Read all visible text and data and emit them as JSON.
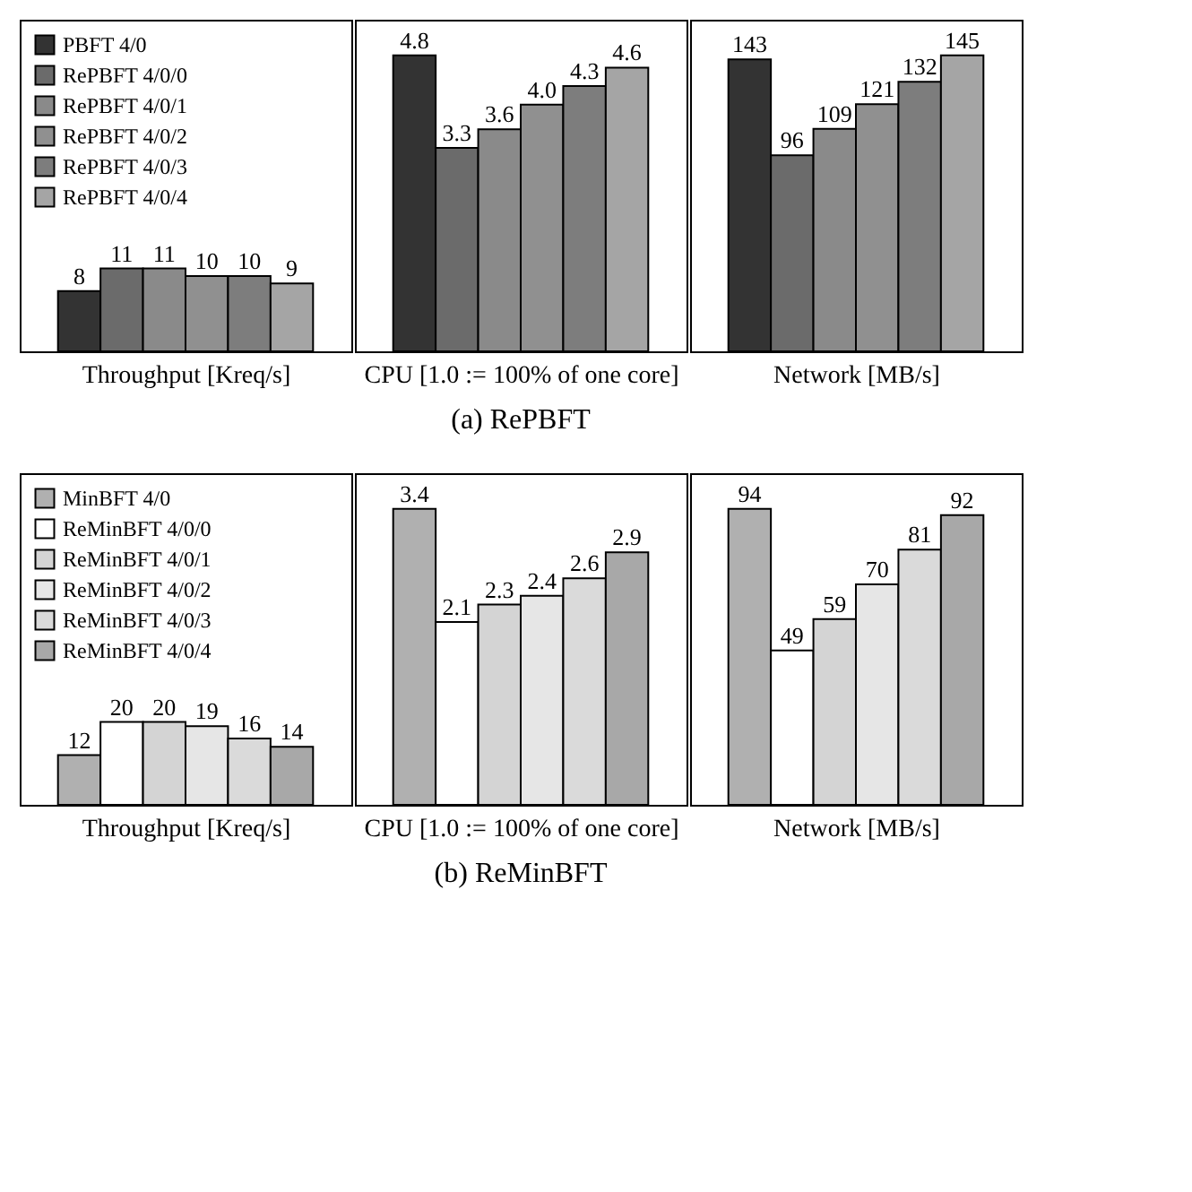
{
  "chart_data": [
    {
      "type": "bar",
      "xlabel": "Throughput [Kreq/s]",
      "categories": [
        null
      ],
      "data_labels": true,
      "legend": "top left",
      "series": [
        {
          "name": "PBFT 4/0",
          "color": "#333333",
          "values": [
            8
          ]
        },
        {
          "name": "RePBFT 4/0/0",
          "color": "#6b6b6b",
          "values": [
            11
          ]
        },
        {
          "name": "RePBFT 4/0/1",
          "color": "#8a8a8a",
          "values": [
            11
          ]
        },
        {
          "name": "RePBFT 4/0/2",
          "color": "#909090",
          "values": [
            10
          ]
        },
        {
          "name": "RePBFT 4/0/3",
          "color": "#7d7d7d",
          "values": [
            10
          ]
        },
        {
          "name": "RePBFT 4/0/4",
          "color": "#a5a5a5",
          "values": [
            9
          ]
        }
      ]
    },
    {
      "type": "bar",
      "xlabel": "CPU [1.0 := 100% of one core]",
      "categories": [
        null
      ],
      "annotations": [
        "(a) RePBFT"
      ],
      "series": [
        {
          "color": "#333333",
          "values": [
            4.8
          ],
          "value_labels": [
            "4.8"
          ]
        },
        {
          "color": "#6b6b6b",
          "values": [
            3.3
          ],
          "value_labels": [
            "3.3"
          ]
        },
        {
          "color": "#8a8a8a",
          "values": [
            3.6
          ],
          "value_labels": [
            "3.6"
          ]
        },
        {
          "color": "#909090",
          "values": [
            4.0
          ],
          "value_labels": [
            "4.0"
          ]
        },
        {
          "color": "#7d7d7d",
          "values": [
            4.3
          ],
          "value_labels": [
            "4.3"
          ]
        },
        {
          "color": "#a5a5a5",
          "values": [
            4.6
          ],
          "value_labels": [
            "4.6"
          ]
        }
      ]
    },
    {
      "type": "bar",
      "xlabel": "Network [MB/s]",
      "categories": [
        null
      ],
      "data_labels": true,
      "series": [
        {
          "color": "#333333",
          "values": [
            143
          ]
        },
        {
          "color": "#6b6b6b",
          "values": [
            96
          ]
        },
        {
          "color": "#8a8a8a",
          "values": [
            109
          ]
        },
        {
          "color": "#909090",
          "values": [
            121
          ]
        },
        {
          "color": "#7d7d7d",
          "values": [
            132
          ]
        },
        {
          "color": "#a5a5a5",
          "values": [
            145
          ]
        }
      ]
    },
    {
      "type": "bar",
      "xlabel": "Throughput [Kreq/s]",
      "categories": [
        null
      ],
      "data_labels": true,
      "legend": "top left",
      "series": [
        {
          "name": "MinBFT 4/0",
          "color": "#b0b0b0",
          "values": [
            12
          ]
        },
        {
          "name": "ReMinBFT 4/0/0",
          "color": "#ffffff",
          "values": [
            20
          ]
        },
        {
          "name": "ReMinBFT 4/0/1",
          "color": "#d4d4d4",
          "values": [
            20
          ]
        },
        {
          "name": "ReMinBFT 4/0/2",
          "color": "#e6e6e6",
          "values": [
            19
          ]
        },
        {
          "name": "ReMinBFT 4/0/3",
          "color": "#dadada",
          "values": [
            16
          ]
        },
        {
          "name": "ReMinBFT 4/0/4",
          "color": "#a8a8a8",
          "values": [
            14
          ]
        }
      ]
    },
    {
      "type": "bar",
      "xlabel": "CPU [1.0 := 100% of one core]",
      "categories": [
        null
      ],
      "data_labels": true,
      "annotations": [
        "(b) ReMinBFT"
      ],
      "series": [
        {
          "color": "#b0b0b0",
          "values": [
            3.4
          ]
        },
        {
          "color": "#ffffff",
          "values": [
            2.1
          ]
        },
        {
          "color": "#d4d4d4",
          "values": [
            2.3
          ]
        },
        {
          "color": "#e6e6e6",
          "values": [
            2.4
          ]
        },
        {
          "color": "#dadada",
          "values": [
            2.6
          ]
        },
        {
          "color": "#a8a8a8",
          "values": [
            2.9
          ]
        }
      ]
    },
    {
      "type": "bar",
      "xlabel": "Network [MB/s]",
      "categories": [
        null
      ],
      "data_labels": true,
      "series": [
        {
          "color": "#b0b0b0",
          "values": [
            94
          ]
        },
        {
          "color": "#ffffff",
          "values": [
            49
          ]
        },
        {
          "color": "#d4d4d4",
          "values": [
            59
          ]
        },
        {
          "color": "#e6e6e6",
          "values": [
            70
          ]
        },
        {
          "color": "#dadada",
          "values": [
            81
          ]
        },
        {
          "color": "#a8a8a8",
          "values": [
            92
          ]
        }
      ]
    }
  ]
}
